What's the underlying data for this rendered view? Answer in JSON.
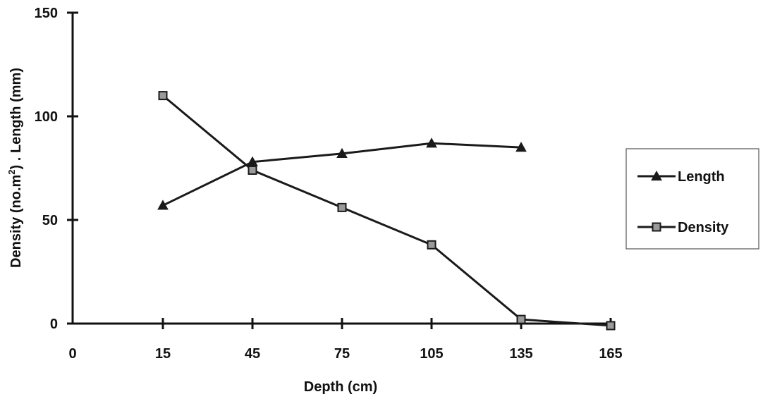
{
  "chart_data": {
    "type": "line",
    "xlabel": "Depth (cm)",
    "ylabel_prefix": "Density (no.m",
    "ylabel_sup": "2",
    "ylabel_suffix": ") . Length (mm)",
    "x_ticks": [
      "0",
      "15",
      "45",
      "75",
      "105",
      "135",
      "165"
    ],
    "y_ticks": [
      "0",
      "50",
      "100",
      "150"
    ],
    "ylim": [
      0,
      150
    ],
    "grid": false,
    "legend_position": "right",
    "categories": [
      "15",
      "45",
      "75",
      "105",
      "135",
      "165"
    ],
    "series": [
      {
        "name": "Length",
        "marker": "triangle",
        "values": [
          57,
          78,
          82,
          87,
          85,
          null
        ]
      },
      {
        "name": "Density",
        "marker": "square",
        "values": [
          110,
          74,
          56,
          38,
          2,
          -1
        ]
      }
    ],
    "colors": {
      "line": "#1a1a1a",
      "marker_fill": "#9a9a9a"
    }
  }
}
